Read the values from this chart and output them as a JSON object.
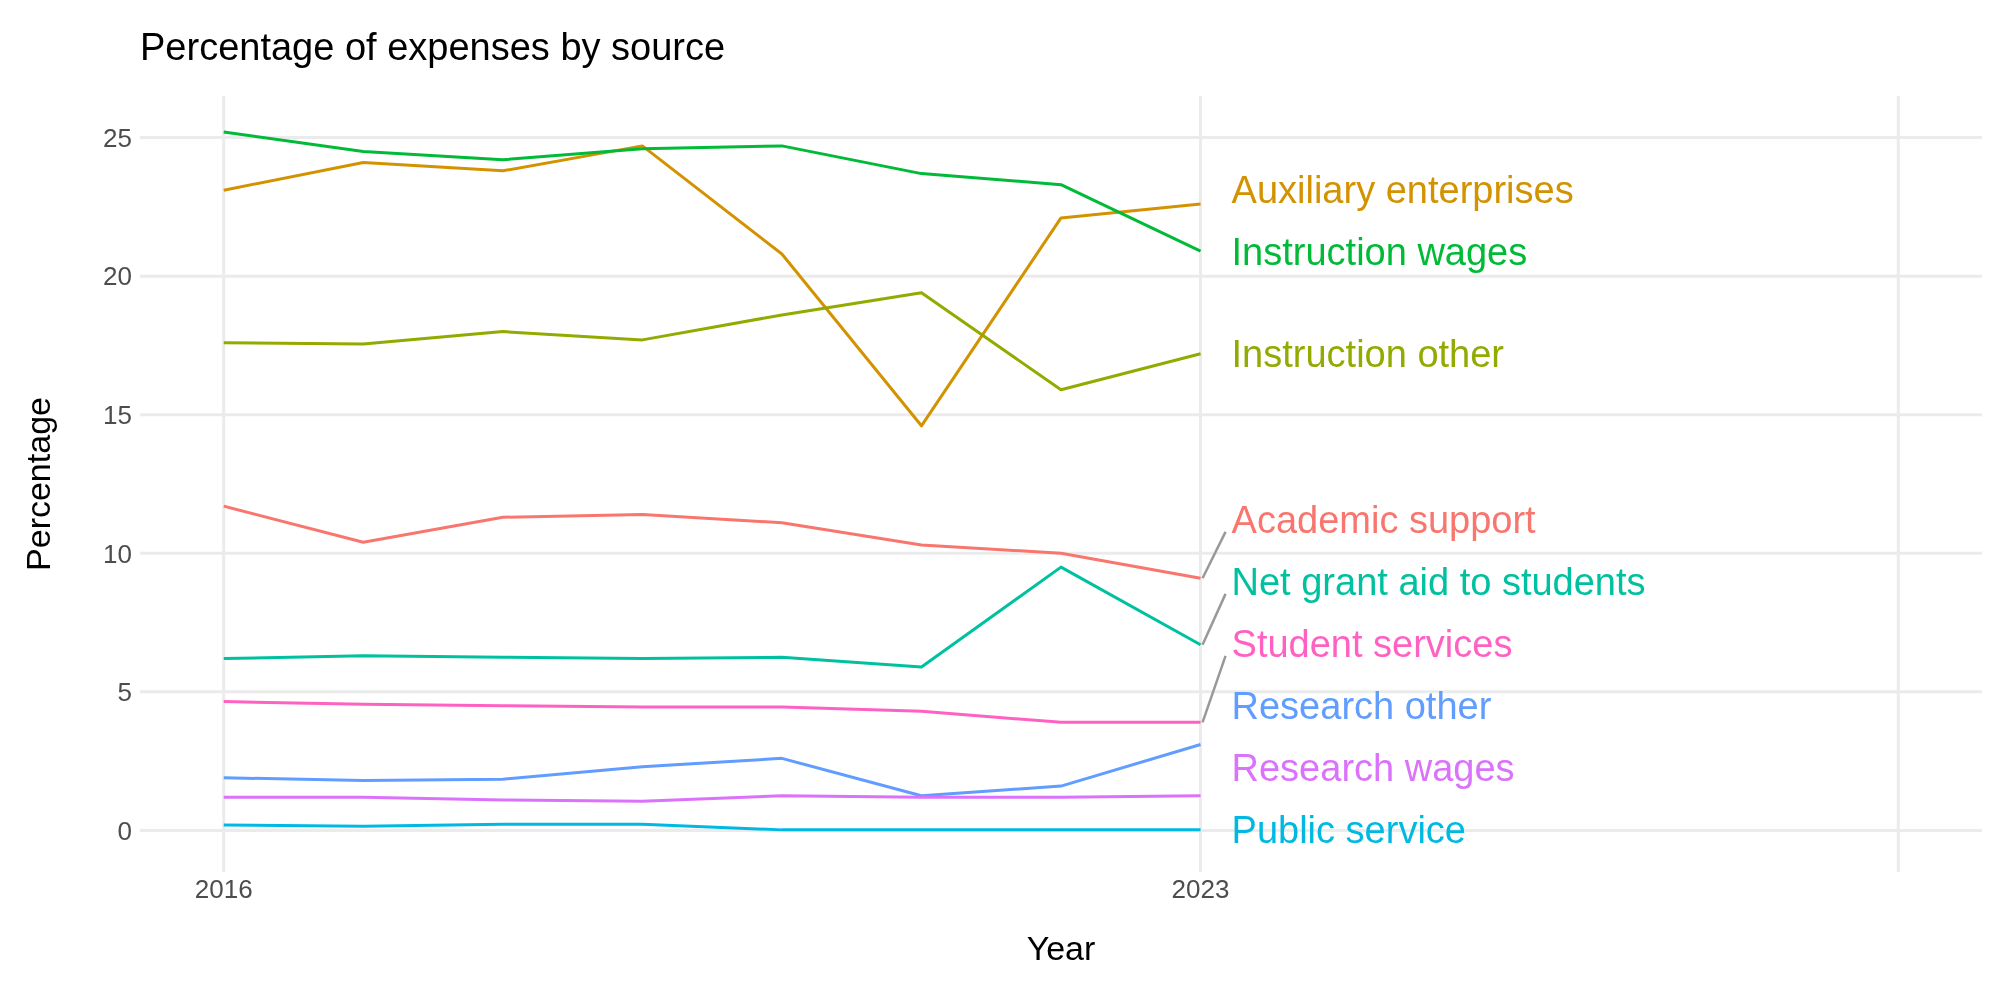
{
  "chart_data": {
    "type": "line",
    "title": "Percentage of expenses by source",
    "xlabel": "Year",
    "ylabel": "Percentage",
    "x": [
      2016,
      2017,
      2018,
      2019,
      2020,
      2021,
      2022,
      2023
    ],
    "xlim": [
      2015.4,
      2028.6
    ],
    "xticks": [
      2016,
      2023,
      {
        "value": 2028,
        "label": null
      }
    ],
    "ylim": [
      -1.5,
      26.5
    ],
    "yticks": [
      0,
      5,
      10,
      15,
      20,
      25
    ],
    "grid": true,
    "series": [
      {
        "name": "Academic support",
        "color": "#f8766d",
        "values": [
          11.7,
          10.4,
          11.3,
          11.4,
          11.1,
          10.3,
          10.0,
          9.1
        ]
      },
      {
        "name": "Auxiliary enterprises",
        "color": "#d39200",
        "values": [
          23.1,
          24.1,
          23.8,
          24.7,
          20.8,
          14.6,
          22.1,
          22.6
        ]
      },
      {
        "name": "Instruction other",
        "color": "#93aa00",
        "values": [
          17.6,
          17.55,
          18.0,
          17.7,
          18.6,
          19.4,
          15.9,
          17.2
        ]
      },
      {
        "name": "Instruction wages",
        "color": "#00ba38",
        "values": [
          25.2,
          24.5,
          24.2,
          24.6,
          24.7,
          23.7,
          23.3,
          20.9
        ]
      },
      {
        "name": "Net grant aid to students",
        "color": "#00c19f",
        "values": [
          6.2,
          6.3,
          6.25,
          6.2,
          6.25,
          5.9,
          9.5,
          6.7
        ]
      },
      {
        "name": "Public service",
        "color": "#00b9e3",
        "values": [
          0.2,
          0.15,
          0.22,
          0.22,
          0.02,
          0.02,
          0.02,
          0.02
        ]
      },
      {
        "name": "Research other",
        "color": "#619cff",
        "values": [
          1.9,
          1.8,
          1.85,
          2.3,
          2.6,
          1.25,
          1.6,
          3.1
        ]
      },
      {
        "name": "Research wages",
        "color": "#db72fb",
        "values": [
          1.2,
          1.2,
          1.1,
          1.05,
          1.25,
          1.2,
          1.2,
          1.25
        ]
      },
      {
        "name": "Student services",
        "color": "#ff61c3",
        "values": [
          4.65,
          4.55,
          4.5,
          4.45,
          4.45,
          4.3,
          3.9,
          3.9
        ]
      }
    ]
  }
}
